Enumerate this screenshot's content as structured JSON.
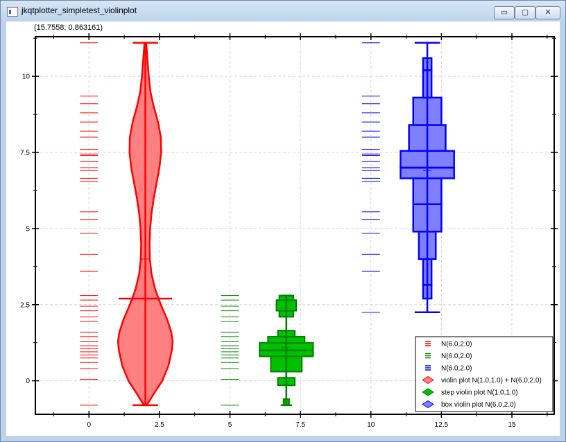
{
  "window": {
    "title": "jkqtplotter_simpletest_violinplot",
    "minimize_glyph": "▭",
    "maximize_glyph": "▢",
    "close_glyph": "✕"
  },
  "coordinate_readout": "(15.7558; 0.863161)",
  "chart_data": {
    "type": "violin",
    "xlim": [
      -1.9,
      16.5
    ],
    "ylim": [
      -1.1,
      11.3
    ],
    "x_ticks": [
      0,
      2.5,
      5,
      7.5,
      10,
      12.5,
      15
    ],
    "x_tick_labels": [
      "0",
      "2.5",
      "5",
      "7.5",
      "10",
      "12.5",
      "15"
    ],
    "y_ticks": [
      0,
      2.5,
      5,
      7.5,
      10
    ],
    "y_tick_labels": [
      "0",
      "2.5",
      "5",
      "7.5",
      "10"
    ],
    "grid": true,
    "legend_position": "bottom-right",
    "colors": {
      "red": "#ff0000",
      "red_fill": "#ff8080",
      "green": "#008000",
      "green_fill": "#00c000",
      "blue": "#0000ff",
      "blue_fill": "#8080ff"
    },
    "rug_series": [
      {
        "legend": "N(6.0,2.0)",
        "color": "#ff0000",
        "x": 0,
        "y": [
          -0.8,
          0.05,
          0.4,
          0.6,
          0.75,
          0.85,
          0.95,
          1.05,
          1.15,
          1.3,
          1.45,
          1.6,
          1.95,
          2.1,
          2.3,
          2.45,
          2.65,
          2.8,
          3.6,
          4.15,
          4.85,
          5.3,
          5.55,
          6.55,
          6.65,
          6.9,
          7.0,
          7.2,
          7.4,
          7.45,
          7.6,
          8.0,
          8.2,
          8.5,
          8.8,
          9.1,
          9.35,
          11.1
        ]
      },
      {
        "legend": "N(6.0,2.0)",
        "color": "#008000",
        "x": 5,
        "y": [
          -0.8,
          0.05,
          0.4,
          0.6,
          0.75,
          0.85,
          0.95,
          1.05,
          1.15,
          1.3,
          1.45,
          1.6,
          1.95,
          2.1,
          2.3,
          2.45,
          2.65,
          2.8
        ]
      },
      {
        "legend": "N(6.0,2.0)",
        "color": "#0000ff",
        "x": 10,
        "y": [
          2.25,
          3.6,
          4.15,
          4.85,
          5.3,
          5.55,
          6.55,
          6.65,
          6.9,
          7.0,
          7.2,
          7.4,
          7.45,
          7.6,
          8.0,
          8.2,
          8.5,
          8.8,
          9.1,
          9.35,
          11.1
        ]
      }
    ],
    "violin_smooth": {
      "legend": "violin plot N(1.0,1.0) + N(6.0,2.0)",
      "x": 2,
      "min": -0.8,
      "max": 11.1,
      "median": 2.7,
      "mean": 4.0,
      "median_halfwidth": 0.95,
      "end_halfwidth": 0.45,
      "profile": [
        [
          -0.8,
          0.05
        ],
        [
          -0.5,
          0.25
        ],
        [
          0.0,
          0.6
        ],
        [
          0.5,
          0.82
        ],
        [
          1.0,
          0.94
        ],
        [
          1.3,
          0.97
        ],
        [
          1.6,
          0.92
        ],
        [
          2.0,
          0.78
        ],
        [
          2.5,
          0.55
        ],
        [
          3.0,
          0.35
        ],
        [
          3.5,
          0.22
        ],
        [
          4.0,
          0.16
        ],
        [
          4.5,
          0.15
        ],
        [
          5.0,
          0.17
        ],
        [
          5.5,
          0.22
        ],
        [
          6.0,
          0.3
        ],
        [
          6.5,
          0.4
        ],
        [
          7.0,
          0.5
        ],
        [
          7.5,
          0.56
        ],
        [
          8.0,
          0.55
        ],
        [
          8.5,
          0.45
        ],
        [
          9.0,
          0.3
        ],
        [
          9.5,
          0.18
        ],
        [
          10.0,
          0.12
        ],
        [
          10.5,
          0.08
        ],
        [
          11.1,
          0.03
        ]
      ]
    },
    "violin_step": {
      "legend": "step violin plot N(1.0,1.0)",
      "x": 7,
      "min": -0.8,
      "max": 2.8,
      "median": 1.0,
      "mean": 1.1,
      "end_halfwidth": 0.2,
      "steps": [
        [
          -0.8,
          -0.6,
          0.1
        ],
        [
          -0.15,
          0.1,
          0.3
        ],
        [
          0.3,
          0.8,
          0.55
        ],
        [
          0.8,
          1.0,
          0.95
        ],
        [
          1.0,
          1.25,
          0.95
        ],
        [
          1.25,
          1.45,
          0.65
        ],
        [
          1.45,
          1.65,
          0.3
        ],
        [
          2.1,
          2.3,
          0.25
        ],
        [
          2.3,
          2.65,
          0.35
        ],
        [
          2.65,
          2.8,
          0.25
        ]
      ]
    },
    "violin_box": {
      "legend": "box violin plot N(6.0,2.0)",
      "x": 12,
      "min": 2.25,
      "max": 11.1,
      "median": 7.0,
      "mean": 6.9,
      "end_halfwidth": 0.45,
      "boxes": [
        [
          2.7,
          3.15,
          0.15
        ],
        [
          3.15,
          4.0,
          0.15
        ],
        [
          4.0,
          4.9,
          0.3
        ],
        [
          4.9,
          5.8,
          0.5
        ],
        [
          5.8,
          6.65,
          0.5
        ],
        [
          6.65,
          7.0,
          0.95
        ],
        [
          7.0,
          7.55,
          0.95
        ],
        [
          7.55,
          8.4,
          0.65
        ],
        [
          8.4,
          9.3,
          0.5
        ],
        [
          9.3,
          10.2,
          0.15
        ],
        [
          10.2,
          10.6,
          0.15
        ]
      ]
    }
  }
}
